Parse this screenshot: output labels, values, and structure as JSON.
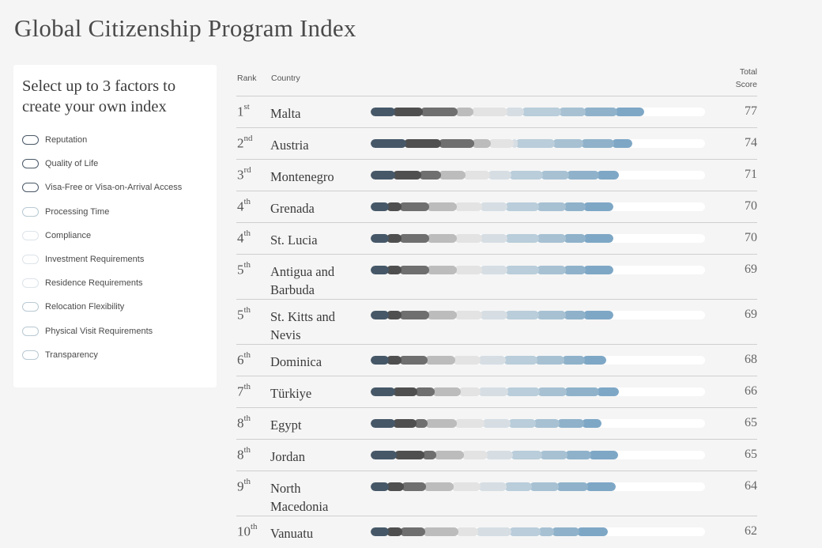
{
  "page_title": "Global Citizenship Program Index",
  "sidebar": {
    "heading": "Select up to 3 factors to create your own index",
    "factors": [
      {
        "label": "Reputation"
      },
      {
        "label": "Quality of Life"
      },
      {
        "label": "Visa-Free or Visa-on-Arrival Access"
      },
      {
        "label": "Processing Time"
      },
      {
        "label": "Compliance"
      },
      {
        "label": "Investment Requirements"
      },
      {
        "label": "Residence Requirements"
      },
      {
        "label": "Relocation Flexibility"
      },
      {
        "label": "Physical Visit Requirements"
      },
      {
        "label": "Transparency"
      }
    ]
  },
  "table": {
    "rank_header": "Rank",
    "country_header": "Country",
    "total_header_line1": "Total",
    "total_header_line2": "Score",
    "segment_colors": [
      "#465868",
      "#4f4f4f",
      "#6f6f6f",
      "#bcbcbc",
      "#e3e3e3",
      "#d6dee4",
      "#b9cdda",
      "#a7c1d3",
      "#8fb2ca",
      "#7ea7c6"
    ],
    "rows": [
      {
        "rank_num": "1",
        "rank_suffix": "st",
        "country": "Malta",
        "score": "77"
      },
      {
        "rank_num": "2",
        "rank_suffix": "nd",
        "country": "Austria",
        "score": "74"
      },
      {
        "rank_num": "3",
        "rank_suffix": "rd",
        "country": "Montenegro",
        "score": "71"
      },
      {
        "rank_num": "4",
        "rank_suffix": "th",
        "country": "Grenada",
        "score": "70"
      },
      {
        "rank_num": "4",
        "rank_suffix": "th",
        "country": "St. Lucia",
        "score": "70"
      },
      {
        "rank_num": "5",
        "rank_suffix": "th",
        "country": "Antigua and Barbuda",
        "score": "69"
      },
      {
        "rank_num": "5",
        "rank_suffix": "th",
        "country": "St. Kitts and Nevis",
        "score": "69"
      },
      {
        "rank_num": "6",
        "rank_suffix": "th",
        "country": "Dominica",
        "score": "68"
      },
      {
        "rank_num": "7",
        "rank_suffix": "th",
        "country": "Türkiye",
        "score": "66"
      },
      {
        "rank_num": "8",
        "rank_suffix": "th",
        "country": "Egypt",
        "score": "65"
      },
      {
        "rank_num": "8",
        "rank_suffix": "th",
        "country": "Jordan",
        "score": "65"
      },
      {
        "rank_num": "9",
        "rank_suffix": "th",
        "country": "North Macedonia",
        "score": "64"
      },
      {
        "rank_num": "10",
        "rank_suffix": "th",
        "country": "Vanuatu",
        "score": "62"
      }
    ]
  }
}
